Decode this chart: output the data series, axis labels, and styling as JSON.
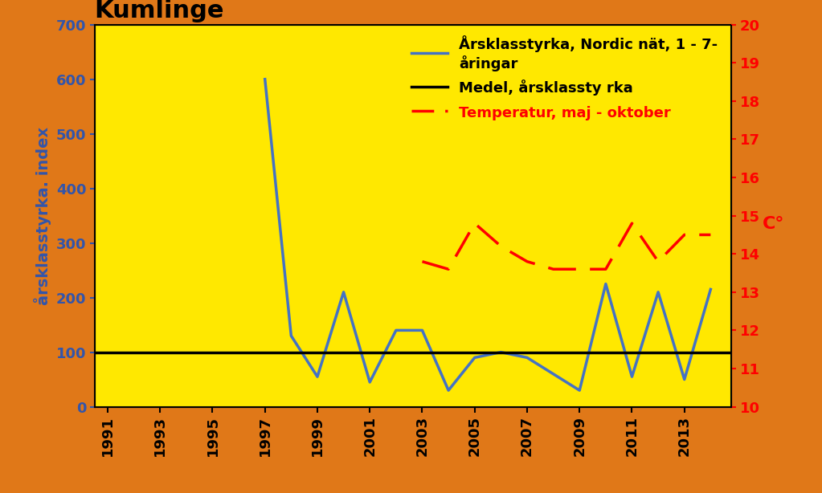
{
  "title": "Kumlinge",
  "ylabel_left": "årsklasstyrka. index",
  "ylabel_right": "C°",
  "background_color": "#FFE800",
  "outer_background": "#E07818",
  "years_index": [
    1996,
    1997,
    1998,
    1999,
    2000,
    2001,
    2002,
    2003,
    2004,
    2005,
    2006,
    2007,
    2008,
    2009,
    2010,
    2011,
    2012,
    2013,
    2014
  ],
  "index_values": [
    null,
    600,
    130,
    55,
    210,
    45,
    140,
    140,
    30,
    90,
    100,
    90,
    60,
    30,
    225,
    55,
    210,
    50,
    215
  ],
  "mean_value": 100,
  "years_temp": [
    2003,
    2004,
    2005,
    2006,
    2007,
    2008,
    2009,
    2010,
    2011,
    2012,
    2013,
    2014
  ],
  "temp_values": [
    13.8,
    13.6,
    14.8,
    14.2,
    13.8,
    13.6,
    13.6,
    13.6,
    14.8,
    13.8,
    14.5,
    14.5
  ],
  "ylim_left": [
    0,
    700
  ],
  "ylim_right": [
    10,
    20
  ],
  "yticks_left": [
    0,
    100,
    200,
    300,
    400,
    500,
    600,
    700
  ],
  "yticks_right": [
    10,
    11,
    12,
    13,
    14,
    15,
    16,
    17,
    18,
    19,
    20
  ],
  "xticks": [
    1991,
    1993,
    1995,
    1997,
    1999,
    2001,
    2003,
    2005,
    2007,
    2009,
    2011,
    2013
  ],
  "xlim": [
    1990.5,
    2014.8
  ],
  "legend_line1": "Årsklasstyrka, Nordic nät, 1 - 7-\nåringar",
  "legend_line2": "Medel, årsklassty rka",
  "legend_line3": "Temperatur, maj - oktober",
  "line_color": "#4472C4",
  "mean_color": "#000000",
  "temp_color": "#FF0000",
  "title_fontsize": 22,
  "legend_fontsize": 13,
  "tick_fontsize": 13,
  "ylabel_fontsize": 14
}
